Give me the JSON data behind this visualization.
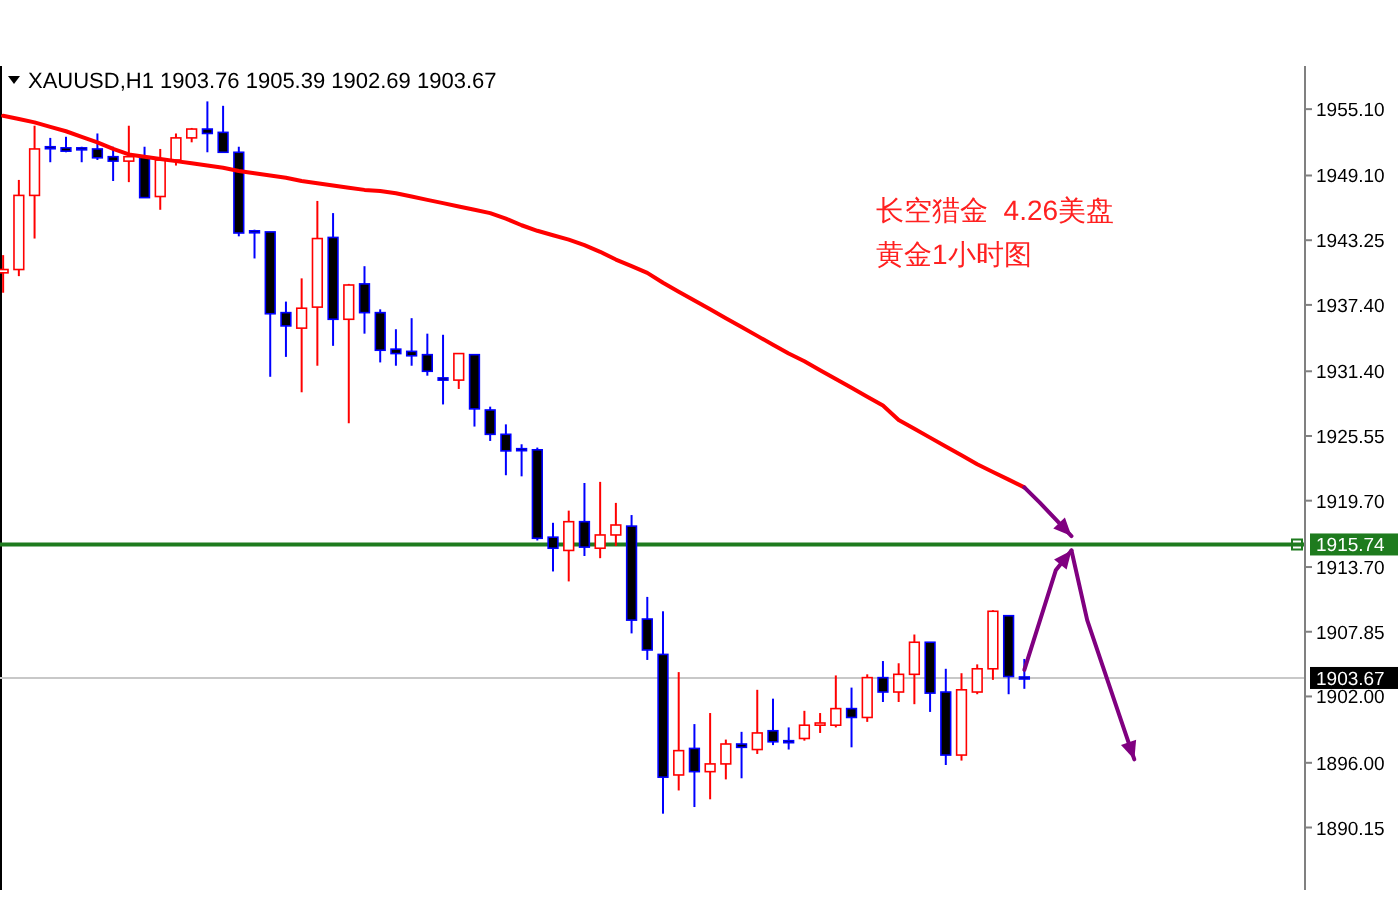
{
  "chart_data": {
    "type": "candlestick",
    "title": "XAUUSD,H1  1903.76 1905.39 1902.69 1903.67",
    "categories": [
      null,
      null,
      null,
      null,
      null,
      null,
      null,
      null,
      null,
      null,
      null,
      null,
      null,
      null,
      null,
      null,
      null,
      null,
      null,
      null,
      null,
      null,
      null,
      null,
      null,
      null,
      null,
      null,
      null,
      null,
      null,
      null,
      null,
      null,
      null,
      null,
      null,
      null,
      null,
      null,
      null,
      null,
      null,
      null,
      null,
      null,
      null,
      null,
      null,
      null,
      null,
      null,
      null,
      null,
      null,
      null,
      null,
      null,
      null,
      null,
      null,
      null,
      null,
      null,
      null,
      null,
      null,
      null,
      null,
      null,
      null,
      null,
      null,
      null,
      null,
      null,
      null,
      null,
      null,
      null,
      null,
      null,
      null
    ],
    "ohlc": [
      [
        1940.3,
        1941.9,
        1938.5,
        1940.6
      ],
      [
        1940.6,
        1948.7,
        1940.0,
        1947.3
      ],
      [
        1947.3,
        1953.6,
        1943.4,
        1951.5
      ],
      [
        1951.7,
        1952.5,
        1950.3,
        1951.6
      ],
      [
        1951.6,
        1952.6,
        1951.2,
        1951.3
      ],
      [
        1951.6,
        1951.7,
        1950.3,
        1951.5
      ],
      [
        1951.5,
        1952.9,
        1950.5,
        1950.7
      ],
      [
        1950.8,
        1951.7,
        1948.6,
        1950.4
      ],
      [
        1950.4,
        1953.6,
        1948.5,
        1950.8
      ],
      [
        1950.8,
        1951.7,
        1947.1,
        1947.1
      ],
      [
        1947.2,
        1951.5,
        1946.0,
        1950.5
      ],
      [
        1950.5,
        1952.9,
        1950.0,
        1952.5
      ],
      [
        1952.5,
        1953.4,
        1952.1,
        1953.3
      ],
      [
        1953.3,
        1955.8,
        1951.2,
        1952.9
      ],
      [
        1953.0,
        1955.4,
        1951.2,
        1951.2
      ],
      [
        1951.2,
        1951.7,
        1943.6,
        1943.9
      ],
      [
        1944.1,
        1944.2,
        1941.6,
        1944.0
      ],
      [
        1944.0,
        1944.0,
        1930.9,
        1936.6
      ],
      [
        1936.7,
        1937.7,
        1932.7,
        1935.5
      ],
      [
        1935.3,
        1939.8,
        1929.5,
        1937.1
      ],
      [
        1937.2,
        1946.8,
        1931.9,
        1943.4
      ],
      [
        1943.5,
        1945.7,
        1933.7,
        1936.1
      ],
      [
        1936.1,
        1939.3,
        1926.7,
        1939.2
      ],
      [
        1939.3,
        1940.9,
        1934.8,
        1936.7
      ],
      [
        1936.7,
        1937.0,
        1932.2,
        1933.3
      ],
      [
        1933.4,
        1935.2,
        1931.9,
        1933.0
      ],
      [
        1933.2,
        1936.2,
        1931.9,
        1932.8
      ],
      [
        1932.9,
        1934.8,
        1931.0,
        1931.4
      ],
      [
        1930.8,
        1934.7,
        1928.4,
        1930.6
      ],
      [
        1930.6,
        1933.0,
        1929.8,
        1933.0
      ],
      [
        1932.9,
        1932.9,
        1926.4,
        1928.0
      ],
      [
        1927.9,
        1928.2,
        1925.1,
        1925.7
      ],
      [
        1925.7,
        1926.6,
        1922.0,
        1924.2
      ],
      [
        1924.4,
        1924.8,
        1921.9,
        1924.3
      ],
      [
        1924.3,
        1924.5,
        1916.1,
        1916.3
      ],
      [
        1916.4,
        1917.7,
        1913.3,
        1915.4
      ],
      [
        1915.2,
        1918.8,
        1912.4,
        1917.8
      ],
      [
        1917.8,
        1921.3,
        1914.7,
        1915.5
      ],
      [
        1915.4,
        1921.4,
        1914.5,
        1916.6
      ],
      [
        1916.6,
        1919.5,
        1915.6,
        1917.5
      ],
      [
        1917.4,
        1918.4,
        1907.7,
        1908.9
      ],
      [
        1909.0,
        1911.0,
        1905.3,
        1906.2
      ],
      [
        1905.8,
        1909.7,
        1891.4,
        1894.7
      ],
      [
        1894.9,
        1904.2,
        1893.5,
        1897.1
      ],
      [
        1897.3,
        1899.5,
        1892.0,
        1895.2
      ],
      [
        1895.2,
        1900.5,
        1892.7,
        1895.9
      ],
      [
        1895.9,
        1898.1,
        1894.5,
        1897.7
      ],
      [
        1897.7,
        1898.8,
        1894.6,
        1897.4
      ],
      [
        1897.2,
        1902.6,
        1896.8,
        1898.7
      ],
      [
        1898.9,
        1901.8,
        1897.6,
        1897.9
      ],
      [
        1898.0,
        1899.2,
        1897.2,
        1897.9
      ],
      [
        1898.2,
        1900.7,
        1898.0,
        1899.4
      ],
      [
        1899.4,
        1900.5,
        1898.7,
        1899.6
      ],
      [
        1899.4,
        1903.9,
        1899.2,
        1900.9
      ],
      [
        1900.9,
        1902.8,
        1897.4,
        1900.1
      ],
      [
        1900.1,
        1904.0,
        1899.7,
        1903.7
      ],
      [
        1903.7,
        1905.2,
        1901.5,
        1902.4
      ],
      [
        1902.4,
        1905.0,
        1901.5,
        1904.0
      ],
      [
        1904.0,
        1907.6,
        1901.3,
        1906.9
      ],
      [
        1906.9,
        1906.9,
        1900.6,
        1902.3
      ],
      [
        1902.4,
        1904.5,
        1895.8,
        1896.7
      ],
      [
        1896.7,
        1904.1,
        1896.2,
        1902.6
      ],
      [
        1902.4,
        1904.9,
        1902.2,
        1904.5
      ],
      [
        1904.5,
        1909.8,
        1903.5,
        1909.7
      ],
      [
        1909.3,
        1909.3,
        1902.2,
        1903.8
      ],
      [
        1903.76,
        1905.39,
        1902.69,
        1903.67
      ],
      null,
      null,
      null,
      null,
      null,
      null,
      null,
      null,
      null,
      null,
      null,
      null,
      null,
      null,
      null,
      null,
      null
    ],
    "series": [
      {
        "type": "line",
        "color": "#ff0000",
        "values": [
          1954.5,
          1954.2,
          1953.9,
          1953.5,
          1953.1,
          1952.6,
          1952.1,
          1951.5,
          1951.0,
          1950.8,
          1950.6,
          1950.4,
          1950.2,
          1950.0,
          1949.8,
          1949.5,
          1949.3,
          1949.1,
          1948.9,
          1948.6,
          1948.4,
          1948.2,
          1948.0,
          1947.8,
          1947.7,
          1947.5,
          1947.2,
          1946.9,
          1946.6,
          1946.3,
          1946.0,
          1945.7,
          1945.2,
          1944.6,
          1944.1,
          1943.7,
          1943.3,
          1942.8,
          1942.2,
          1941.5,
          1940.9,
          1940.3,
          1939.4,
          1938.6,
          1937.8,
          1937.0,
          1936.2,
          1935.4,
          1934.6,
          1933.8,
          1933.0,
          1932.3,
          1931.5,
          1930.7,
          1929.9,
          1929.1,
          1928.3,
          1927.0,
          1926.2,
          1925.4,
          1924.6,
          1923.8,
          1923.0,
          1922.3,
          1921.6,
          1920.9,
          null,
          null,
          null,
          null,
          null,
          null,
          null,
          null,
          null,
          null,
          null,
          null,
          null,
          null,
          null,
          null,
          null
        ]
      },
      {
        "type": "line",
        "color": "#800080",
        "values": [
          null,
          null,
          null,
          null,
          null,
          null,
          null,
          null,
          null,
          null,
          null,
          null,
          null,
          null,
          null,
          null,
          null,
          null,
          null,
          null,
          null,
          null,
          null,
          null,
          null,
          null,
          null,
          null,
          null,
          null,
          null,
          null,
          null,
          null,
          null,
          null,
          null,
          null,
          null,
          null,
          null,
          null,
          null,
          null,
          null,
          null,
          null,
          null,
          null,
          null,
          null,
          null,
          null,
          null,
          null,
          null,
          null,
          null,
          null,
          null,
          null,
          null,
          null,
          null,
          null,
          1920.9,
          1919.5,
          1918.0,
          1916.5,
          null,
          null,
          null,
          null,
          null,
          null,
          null,
          null,
          null,
          null,
          null,
          null,
          null,
          null
        ]
      },
      {
        "type": "line",
        "color": "#800080",
        "values": [
          null,
          null,
          null,
          null,
          null,
          null,
          null,
          null,
          null,
          null,
          null,
          null,
          null,
          null,
          null,
          null,
          null,
          null,
          null,
          null,
          null,
          null,
          null,
          null,
          null,
          null,
          null,
          null,
          null,
          null,
          null,
          null,
          null,
          null,
          null,
          null,
          null,
          null,
          null,
          null,
          null,
          null,
          null,
          null,
          null,
          null,
          null,
          null,
          null,
          null,
          null,
          null,
          null,
          null,
          null,
          null,
          null,
          null,
          null,
          null,
          null,
          null,
          null,
          null,
          null,
          1904.4,
          1908.9,
          1913.4,
          1915.2,
          null,
          null,
          null,
          null,
          null,
          null,
          null,
          null,
          null,
          null,
          null,
          null,
          null,
          null
        ]
      },
      {
        "type": "line",
        "color": "#800080",
        "values": [
          null,
          null,
          null,
          null,
          null,
          null,
          null,
          null,
          null,
          null,
          null,
          null,
          null,
          null,
          null,
          null,
          null,
          null,
          null,
          null,
          null,
          null,
          null,
          null,
          null,
          null,
          null,
          null,
          null,
          null,
          null,
          null,
          null,
          null,
          null,
          null,
          null,
          null,
          null,
          null,
          null,
          null,
          null,
          null,
          null,
          null,
          null,
          null,
          null,
          null,
          null,
          null,
          null,
          null,
          null,
          null,
          null,
          null,
          null,
          null,
          null,
          null,
          null,
          null,
          null,
          null,
          null,
          null,
          1915.2,
          1908.9,
          1904.7,
          1900.5,
          1896.3,
          null,
          null,
          null,
          null,
          null,
          null,
          null,
          null,
          null,
          null
        ]
      }
    ],
    "ylim": [
      1884.5,
      1959
    ],
    "yticks": [
      {
        "value": 1955.1,
        "label": "1955.10"
      },
      {
        "value": 1949.1,
        "label": "1949.10"
      },
      1943.25,
      {
        "value": 1937.4,
        "label": "1937.40"
      },
      {
        "value": 1931.4,
        "label": "1931.40"
      },
      1925.55,
      {
        "value": 1919.7,
        "label": "1919.70"
      },
      {
        "value": 1913.7,
        "label": "1913.70"
      },
      1907.85,
      {
        "value": 1902,
        "label": "1902.00"
      },
      {
        "value": 1896,
        "label": "1896.00"
      },
      1890.15
    ],
    "tick_labels": "y",
    "ref_lines": [
      {
        "axis": "y",
        "value": 1915.74,
        "label": "1915.74",
        "color": "#1e7b1e"
      },
      {
        "axis": "y",
        "value": 1903.67,
        "label": "1903.67",
        "color": "#c8c8c8"
      }
    ],
    "annotations": [
      "长空猎金  4.26美盘",
      "黄金1小时图"
    ]
  }
}
